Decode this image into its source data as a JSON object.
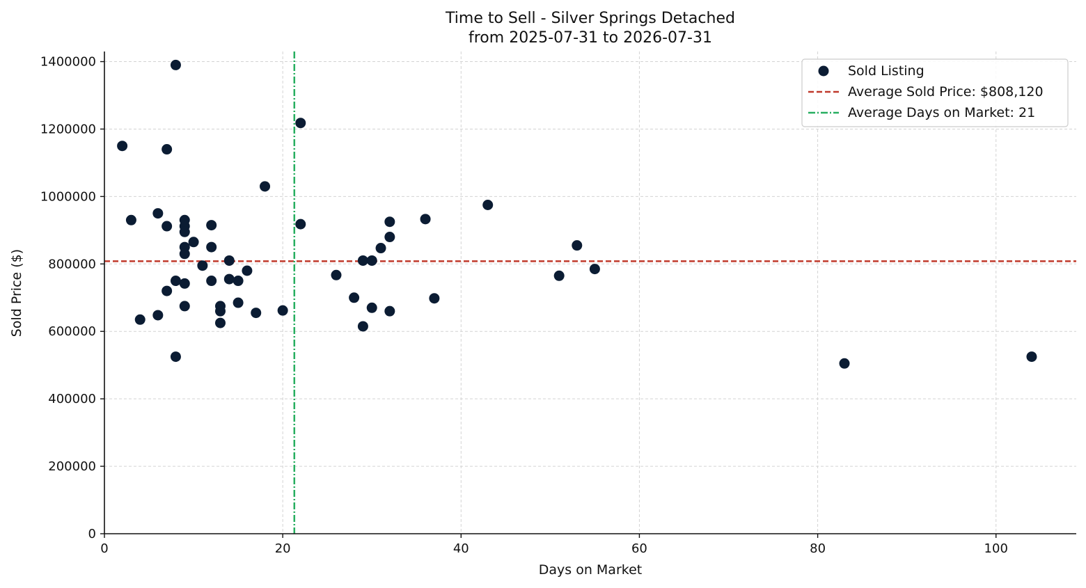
{
  "colors": {
    "points": "#0b1c33",
    "avg_price_line": "#c0392b",
    "avg_days_line": "#27ae60",
    "grid": "#d3d3d3",
    "axis": "#111111"
  },
  "chart_data": {
    "type": "scatter",
    "title_line1": "Time to Sell - Silver Springs Detached",
    "title_line2": "from 2025-07-31 to 2026-07-31",
    "xlabel": "Days on Market",
    "ylabel": "Sold Price ($)",
    "xlim": [
      0,
      109
    ],
    "ylim": [
      0,
      1430000
    ],
    "xticks": [
      0,
      20,
      40,
      60,
      80,
      100
    ],
    "yticks": [
      0,
      200000,
      400000,
      600000,
      800000,
      1000000,
      1200000,
      1400000
    ],
    "xtick_labels": [
      "0",
      "20",
      "40",
      "60",
      "80",
      "100"
    ],
    "ytick_labels": [
      "0",
      "200000",
      "400000",
      "600000",
      "800000",
      "1000000",
      "1200000",
      "1400000"
    ],
    "grid": true,
    "legend_position": "top-right",
    "series": [
      {
        "name": "Sold Listing",
        "points": [
          [
            2,
            1150000
          ],
          [
            3,
            930000
          ],
          [
            4,
            635000
          ],
          [
            6,
            950000
          ],
          [
            6,
            648000
          ],
          [
            7,
            1140000
          ],
          [
            7,
            912000
          ],
          [
            7,
            720000
          ],
          [
            8,
            1390000
          ],
          [
            8,
            750000
          ],
          [
            8,
            525000
          ],
          [
            9,
            930000
          ],
          [
            9,
            912000
          ],
          [
            9,
            895000
          ],
          [
            9,
            850000
          ],
          [
            9,
            830000
          ],
          [
            9,
            742000
          ],
          [
            9,
            675000
          ],
          [
            10,
            865000
          ],
          [
            11,
            795000
          ],
          [
            12,
            915000
          ],
          [
            12,
            850000
          ],
          [
            12,
            750000
          ],
          [
            13,
            675000
          ],
          [
            13,
            660000
          ],
          [
            13,
            625000
          ],
          [
            14,
            810000
          ],
          [
            14,
            755000
          ],
          [
            15,
            750000
          ],
          [
            15,
            685000
          ],
          [
            16,
            780000
          ],
          [
            17,
            655000
          ],
          [
            18,
            1030000
          ],
          [
            20,
            662000
          ],
          [
            22,
            1218000
          ],
          [
            22,
            918000
          ],
          [
            26,
            767000
          ],
          [
            28,
            700000
          ],
          [
            29,
            810000
          ],
          [
            29,
            615000
          ],
          [
            30,
            810000
          ],
          [
            30,
            670000
          ],
          [
            31,
            847000
          ],
          [
            32,
            925000
          ],
          [
            32,
            880000
          ],
          [
            32,
            660000
          ],
          [
            36,
            933000
          ],
          [
            37,
            698000
          ],
          [
            43,
            975000
          ],
          [
            51,
            765000
          ],
          [
            53,
            855000
          ],
          [
            55,
            785000
          ],
          [
            83,
            505000
          ],
          [
            104,
            525000
          ]
        ]
      }
    ],
    "reference_lines": [
      {
        "name": "Average Sold Price: $808,120",
        "orientation": "horizontal",
        "value": 808120,
        "style": "dashed"
      },
      {
        "name": "Average Days on Market: 21",
        "orientation": "vertical",
        "value": 21.3,
        "style": "dashdot"
      }
    ]
  }
}
